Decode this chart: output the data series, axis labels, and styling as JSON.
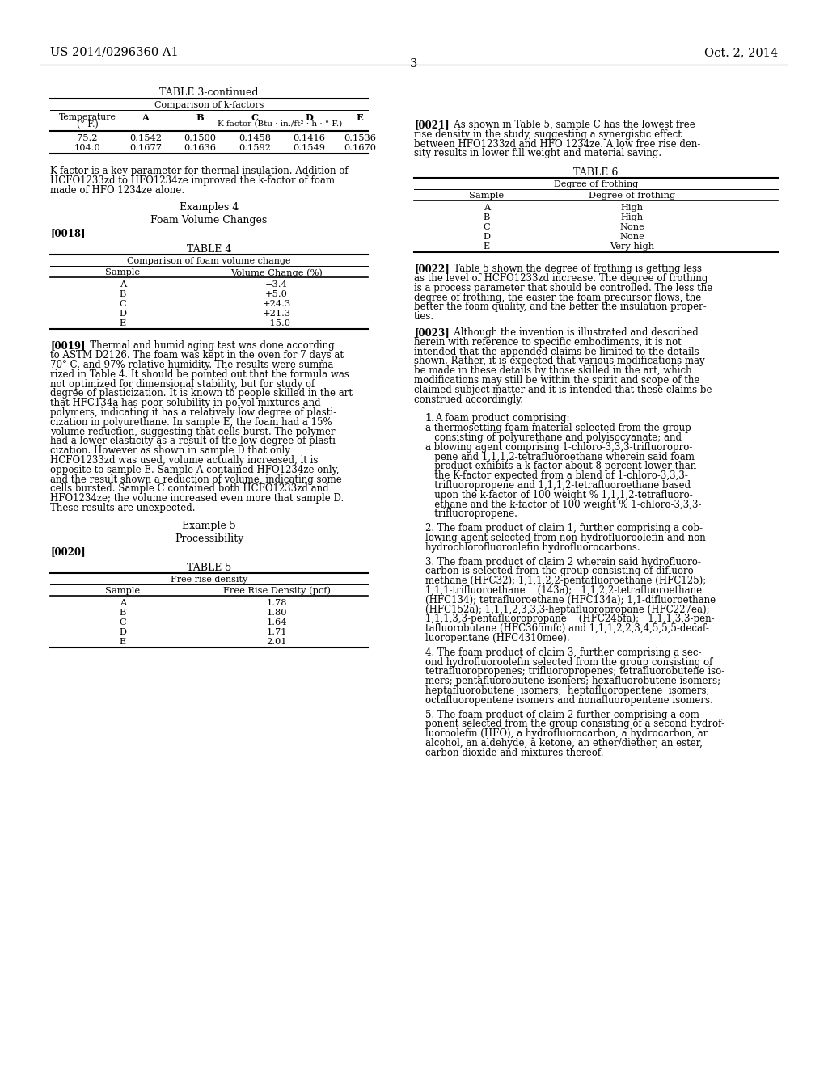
{
  "bg_color": "#ffffff",
  "text_color": "#000000",
  "header_left": "US 2014/0296360 A1",
  "header_right": "Oct. 2, 2014",
  "page_number": "3",
  "left": {
    "table3_title": "TABLE 3-continued",
    "table3_subtitle": "Comparison of k-factors",
    "table3_col0_line1": "Temperature",
    "table3_col0_line2": "(° F.)",
    "table3_col1": "A",
    "table3_col2": "B",
    "table3_col3": "C",
    "table3_col4": "D",
    "table3_col5": "E",
    "table3_subhdr": "K factor (Btu · in./ft² · h · ° F.)",
    "table3_rows": [
      [
        "75.2",
        "0.1542",
        "0.1500",
        "0.1458",
        "0.1416",
        "0.1536"
      ],
      [
        "104.0",
        "0.1677",
        "0.1636",
        "0.1592",
        "0.1549",
        "0.1670"
      ]
    ],
    "para_kfactor": [
      "K-factor is a key parameter for thermal insulation. Addition of",
      "HCFO1233zd to HFO1234ze improved the k-factor of foam",
      "made of HFO 1234ze alone."
    ],
    "examples4_title": "Examples 4",
    "examples4_sub": "Foam Volume Changes",
    "tag0018": "[0018]",
    "table4_title": "TABLE 4",
    "table4_subtitle": "Comparison of foam volume change",
    "table4_col1": "Sample",
    "table4_col2": "Volume Change (%)",
    "table4_rows": [
      [
        "A",
        "−3.4"
      ],
      [
        "B",
        "+5.0"
      ],
      [
        "C",
        "+24.3"
      ],
      [
        "D",
        "+21.3"
      ],
      [
        "E",
        "−15.0"
      ]
    ],
    "para0019_tag": "[0019]",
    "para0019_lines": [
      "   Thermal and humid aging test was done according",
      "to ASTM D2126. The foam was kept in the oven for 7 days at",
      "70° C. and 97% relative humidity. The results were summa-",
      "rized in Table 4. It should be pointed out that the formula was",
      "not optimized for dimensional stability, but for study of",
      "degree of plasticization. It is known to people skilled in the art",
      "that HFC134a has poor solubility in polyol mixtures and",
      "polymers, indicating it has a relatively low degree of plasti-",
      "cization in polyurethane. In sample E, the foam had a 15%",
      "volume reduction, suggesting that cells burst. The polymer",
      "had a lower elasticity as a result of the low degree of plasti-",
      "cization. However as shown in sample D that only",
      "HCFO1233zd was used, volume actually increased, it is",
      "opposite to sample E. Sample A contained HFO1234ze only,",
      "and the result shown a reduction of volume, indicating some",
      "cells bursted. Sample C contained both HCFO1233zd and",
      "HFO1234ze; the volume increased even more that sample D.",
      "These results are unexpected."
    ],
    "example5_title": "Example 5",
    "example5_sub": "Processibility",
    "tag0020": "[0020]",
    "table5_title": "TABLE 5",
    "table5_subtitle": "Free rise density",
    "table5_col1": "Sample",
    "table5_col2": "Free Rise Density (pcf)",
    "table5_rows": [
      [
        "A",
        "1.78"
      ],
      [
        "B",
        "1.80"
      ],
      [
        "C",
        "1.64"
      ],
      [
        "D",
        "1.71"
      ],
      [
        "E",
        "2.01"
      ]
    ]
  },
  "right": {
    "para0021_tag": "[0021]",
    "para0021_lines": [
      "   As shown in Table 5, sample C has the lowest free",
      "rise density in the study, suggesting a synergistic effect",
      "between HFO1233zd and HFO 1234ze. A low free rise den-",
      "sity results in lower fill weight and material saving."
    ],
    "table6_title": "TABLE 6",
    "table6_subtitle": "Degree of frothing",
    "table6_col1": "Sample",
    "table6_col2": "Degree of frothing",
    "table6_rows": [
      [
        "A",
        "High"
      ],
      [
        "B",
        "High"
      ],
      [
        "C",
        "None"
      ],
      [
        "D",
        "None"
      ],
      [
        "E",
        "Very high"
      ]
    ],
    "para0022_tag": "[0022]",
    "para0022_lines": [
      "   Table 5 shown the degree of frothing is getting less",
      "as the level of HCFO1233zd increase. The degree of frothing",
      "is a process parameter that should be controlled. The less the",
      "degree of frothing, the easier the foam precursor flows, the",
      "better the foam quality, and the better the insulation proper-",
      "ties."
    ],
    "para0023_tag": "[0023]",
    "para0023_lines": [
      "   Although the invention is illustrated and described",
      "herein with reference to specific embodiments, it is not",
      "intended that the appended claims be limited to the details",
      "shown. Rather, it is expected that various modifications may",
      "be made in these details by those skilled in the art, which",
      "modifications may still be within the spirit and scope of the",
      "claimed subject matter and it is intended that these claims be",
      "construed accordingly."
    ],
    "claim1_num": "1.",
    "claim1_lines": [
      "A foam product comprising:",
      "a thermosetting foam material selected from the group",
      "   consisting of polyurethane and polyisocyanate; and",
      "a blowing agent comprising 1-chloro-3,3,3-trifluoropro-",
      "   pene and 1,1,1,2-tetrafluoroethane wherein said foam",
      "   product exhibits a k-factor about 8 percent lower than",
      "   the K-factor expected from a blend of 1-chloro-3,3,3-",
      "   trifluoropropene and 1,1,1,2-tetrafluoroethane based",
      "   upon the k-factor of 100 weight % 1,1,1,2-tetrafluoro-",
      "   ethane and the k-factor of 100 weight % 1-chloro-3,3,3-",
      "   trifluoropropene."
    ],
    "claim2_lines": [
      "2. The foam product of claim 1, further comprising a cob-",
      "lowing agent selected from non-hydrofluoroolefin and non-",
      "hydrochlorofluoroolefin hydrofluorocarbons."
    ],
    "claim3_lines": [
      "3. The foam product of claim 2 wherein said hydrofluoro-",
      "carbon is selected from the group consisting of difluoro-",
      "methane (HFC32); 1,1,1,2,2-pentafluoroethane (HFC125);",
      "1,1,1-trifluoroethane    (143a);   1,1,2,2-tetrafluoroethane",
      "(HFC134); tetrafluoroethane (HFC134a); 1,1-difluoroethane",
      "(HFC152a); 1,1,1,2,3,3,3-heptafluoropropane (HFC227ea);",
      "1,1,1,3,3-pentafluoropropane    (HFC245fa);   1,1,1,3,3-pen-",
      "tafluorobutane (HFC365mfc) and 1,1,1,2,2,3,4,5,5,5-decaf-",
      "luoropentane (HFC4310mee)."
    ],
    "claim4_lines": [
      "4. The foam product of claim 3, further comprising a sec-",
      "ond hydrofluoroolefin selected from the group consisting of",
      "tetrafluoropropenes; trifluoropropenes; tetrafluorobutene iso-",
      "mers; pentafluorobutene isomers; hexafluorobutene isomers;",
      "heptafluorobutene  isomers;  heptafluoropentene  isomers;",
      "octafluoropentene isomers and nonafluoropentene isomers."
    ],
    "claim5_lines": [
      "5. The foam product of claim 2 further comprising a com-",
      "ponent selected from the group consisting of a second hydrof-",
      "luoroolefin (HFO), a hydrofluorocarbon, a hydrocarbon, an",
      "alcohol, an aldehyde, a ketone, an ether/diether, an ester,",
      "carbon dioxide and mixtures thereof."
    ]
  }
}
